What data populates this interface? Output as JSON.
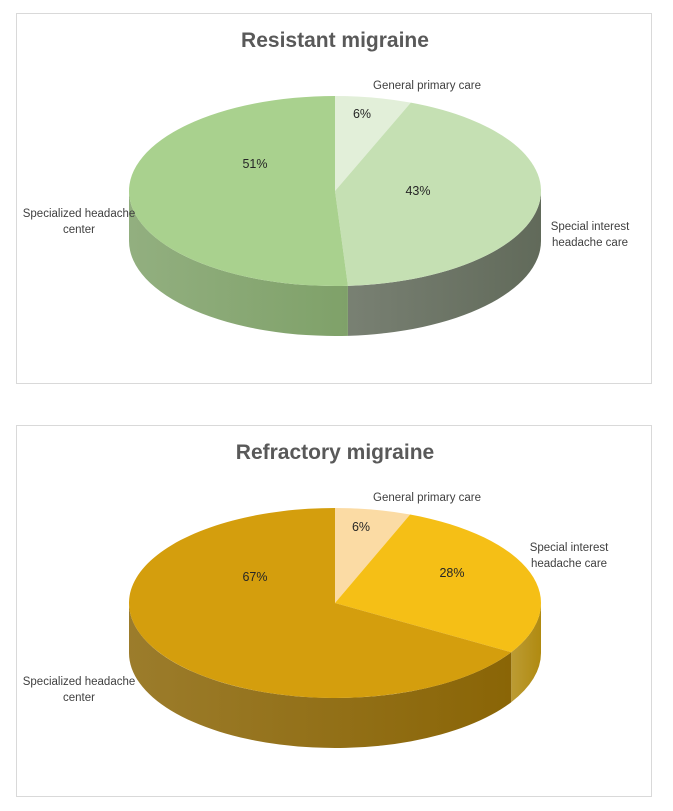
{
  "chart_data": [
    {
      "type": "pie",
      "title": "Resistant migraine",
      "categories": [
        "General primary care",
        "Special interest headache care",
        "Specialized headache center"
      ],
      "values": [
        6,
        43,
        51
      ],
      "value_labels": [
        "6%",
        "43%",
        "51%"
      ],
      "colors": [
        "#e2efd9",
        "#c5e0b3",
        "#a9d18e"
      ],
      "side_colors": [
        "#9fb293",
        "#616a5a",
        "#7fa169"
      ],
      "style": "3d"
    },
    {
      "type": "pie",
      "title": "Refractory migraine",
      "categories": [
        "General primary care",
        "Special interest headache care",
        "Specialized headache center"
      ],
      "values": [
        6,
        28,
        67
      ],
      "value_labels": [
        "6%",
        "28%",
        "67%"
      ],
      "colors": [
        "#fbdba4",
        "#f5bf16",
        "#d49e0d"
      ],
      "side_colors": [
        "#c9a873",
        "#b08a10",
        "#8a6506"
      ],
      "style": "3d"
    }
  ]
}
